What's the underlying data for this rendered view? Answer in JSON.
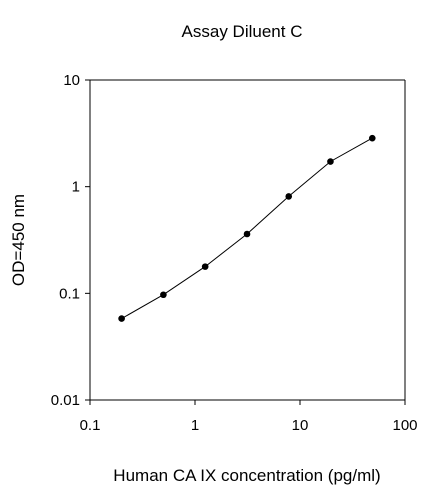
{
  "chart_data": {
    "type": "line",
    "title": "Assay Diluent C",
    "xlabel": "Human CA IX concentration (pg/ml)",
    "ylabel": "OD=450 nm",
    "x_scale": "log",
    "y_scale": "log",
    "xlim": [
      0.1,
      100
    ],
    "ylim": [
      0.01,
      10
    ],
    "x_ticks": [
      "0.1",
      "1",
      "10",
      "100"
    ],
    "y_ticks": [
      "0.01",
      "0.1",
      "1",
      "10"
    ],
    "grid": false,
    "legend": "none",
    "series": [
      {
        "x": [
          0.2,
          0.5,
          1.25,
          3.13,
          7.81,
          19.5,
          48.8
        ],
        "y": [
          0.058,
          0.097,
          0.178,
          0.36,
          0.81,
          1.72,
          2.85
        ]
      }
    ],
    "colors": {
      "line": "#000000",
      "marker": "#000000",
      "axis": "#000000"
    }
  }
}
